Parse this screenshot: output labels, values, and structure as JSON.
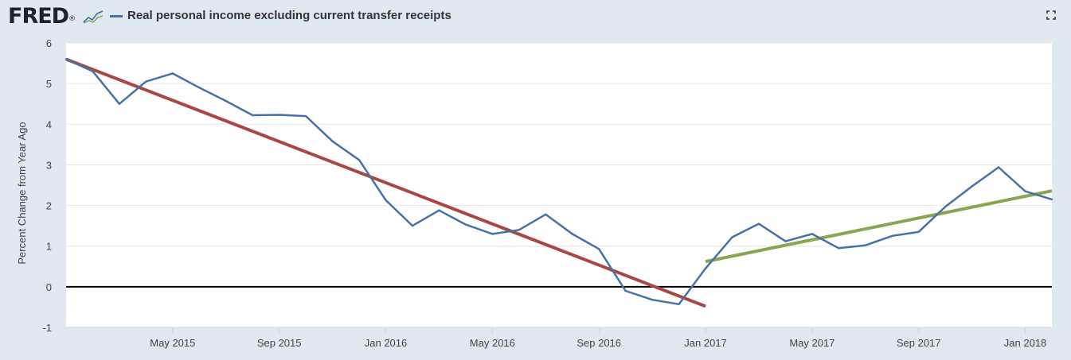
{
  "brand": {
    "logo_text": "FRED",
    "logo_mark": "®"
  },
  "icons": {
    "logo_graph": "line-graph-icon",
    "fullscreen": "expand-icon"
  },
  "chart_data": {
    "type": "line",
    "title": "Real personal income excluding current transfer receipts",
    "xlabel": "",
    "ylabel": "Percent Change from Year Ago",
    "ylim": [
      -1,
      6
    ],
    "yticks": [
      -1,
      0,
      1,
      2,
      3,
      4,
      5,
      6
    ],
    "xticks": [
      {
        "date": "2015-05",
        "label": "May 2015"
      },
      {
        "date": "2015-09",
        "label": "Sep 2015"
      },
      {
        "date": "2016-01",
        "label": "Jan 2016"
      },
      {
        "date": "2016-05",
        "label": "May 2016"
      },
      {
        "date": "2016-09",
        "label": "Sep 2016"
      },
      {
        "date": "2017-01",
        "label": "Jan 2017"
      },
      {
        "date": "2017-05",
        "label": "May 2017"
      },
      {
        "date": "2017-09",
        "label": "Sep 2017"
      },
      {
        "date": "2018-01",
        "label": "Jan 2018"
      }
    ],
    "xlim": [
      "2015-01",
      "2018-02"
    ],
    "grid": true,
    "zero_line": true,
    "colors": {
      "series": "#4572a7",
      "decline_trend": "#aa4643",
      "rise_trend": "#89a54e",
      "zero": "#000000",
      "plot_bg": "#ffffff"
    },
    "series": [
      {
        "name": "Real personal income excluding current transfer receipts",
        "x": [
          "2015-01",
          "2015-02",
          "2015-03",
          "2015-04",
          "2015-05",
          "2015-06",
          "2015-07",
          "2015-08",
          "2015-09",
          "2015-10",
          "2015-11",
          "2015-12",
          "2016-01",
          "2016-02",
          "2016-03",
          "2016-04",
          "2016-05",
          "2016-06",
          "2016-07",
          "2016-08",
          "2016-09",
          "2016-10",
          "2016-11",
          "2016-12",
          "2017-01",
          "2017-02",
          "2017-03",
          "2017-04",
          "2017-05",
          "2017-06",
          "2017-07",
          "2017-08",
          "2017-09",
          "2017-10",
          "2017-11",
          "2017-12",
          "2018-01",
          "2018-02"
        ],
        "y": [
          5.6,
          5.3,
          4.5,
          5.05,
          5.25,
          4.9,
          4.57,
          4.22,
          4.23,
          4.2,
          3.58,
          3.12,
          2.13,
          1.5,
          1.88,
          1.53,
          1.3,
          1.4,
          1.78,
          1.3,
          0.93,
          -0.1,
          -0.32,
          -0.43,
          0.45,
          1.22,
          1.55,
          1.12,
          1.3,
          0.95,
          1.02,
          1.25,
          1.35,
          1.97,
          2.47,
          2.94,
          2.35,
          2.15
        ]
      }
    ],
    "trendlines": [
      {
        "from": {
          "x": "2015-01",
          "y": 5.6
        },
        "to": {
          "x": "2017-01",
          "y": -0.48
        }
      },
      {
        "from": {
          "x": "2017-01",
          "y": 0.62
        },
        "to": {
          "x": "2018-02",
          "y": 2.36
        }
      }
    ]
  }
}
